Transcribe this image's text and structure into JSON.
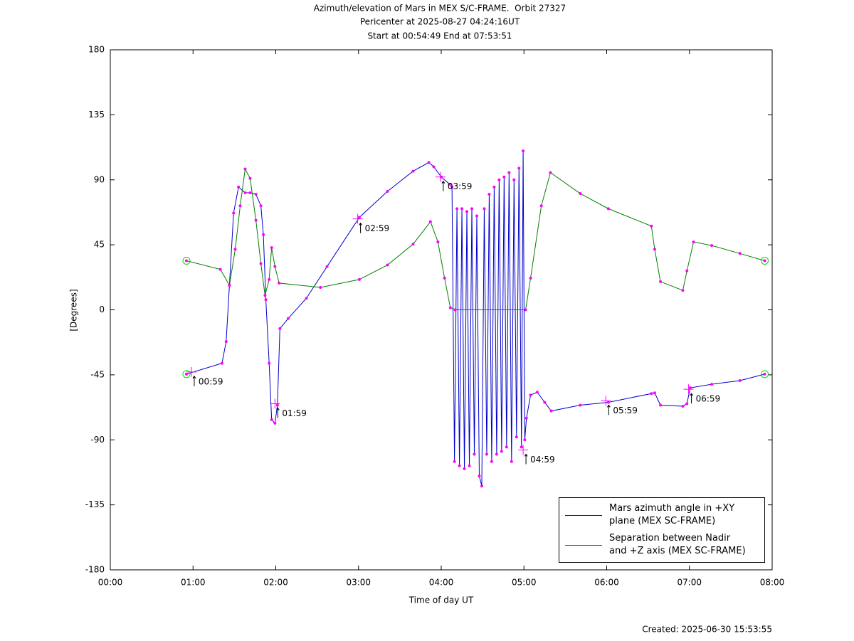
{
  "chart_data": {
    "type": "line",
    "title": "Azimuth/elevation of Mars in MEX S/C-FRAME.  Orbit 27327",
    "subtitle": [
      "Pericenter at 2025-08-27 04:24:16UT",
      "Start at 00:54:49 End at 07:53:51"
    ],
    "xlabel": "Time of day UT",
    "ylabel": "[Degrees]",
    "footer": "Created: 2025-06-30 15:53:55",
    "xlim": [
      0,
      8
    ],
    "ylim": [
      -180,
      180
    ],
    "xticks": [
      {
        "value": 0,
        "label": "00:00"
      },
      {
        "value": 1,
        "label": "01:00"
      },
      {
        "value": 2,
        "label": "02:00"
      },
      {
        "value": 3,
        "label": "03:00"
      },
      {
        "value": 4,
        "label": "04:00"
      },
      {
        "value": 5,
        "label": "05:00"
      },
      {
        "value": 6,
        "label": "06:00"
      },
      {
        "value": 7,
        "label": "07:00"
      },
      {
        "value": 8,
        "label": "08:00"
      }
    ],
    "yticks": [
      -180,
      -135,
      -90,
      -45,
      0,
      45,
      90,
      135,
      180
    ],
    "legend": "lower right",
    "marker_color": "#ff00ff",
    "endpoint_color": "#00dd00",
    "series": [
      {
        "name": "Mars azimuth angle in +XY\nplane (MEX SC-FRAME)",
        "color": "#0000cc",
        "x": [
          0.92,
          1.35,
          1.4,
          1.44,
          1.49,
          1.55,
          1.63,
          1.69,
          1.76,
          1.82,
          1.85,
          1.88,
          1.92,
          1.95,
          1.99,
          2.02,
          2.05,
          2.15,
          2.37,
          2.62,
          3.01,
          3.35,
          3.66,
          3.85,
          3.91,
          4.0,
          4.1,
          4.13,
          4.16,
          4.19,
          4.22,
          4.25,
          4.28,
          4.31,
          4.34,
          4.37,
          4.4,
          4.43,
          4.46,
          4.49,
          4.52,
          4.55,
          4.58,
          4.61,
          4.64,
          4.67,
          4.7,
          4.73,
          4.76,
          4.79,
          4.82,
          4.85,
          4.88,
          4.91,
          4.94,
          4.97,
          4.99,
          5.01,
          5.03,
          5.08,
          5.16,
          5.25,
          5.33,
          5.68,
          6.02,
          6.54,
          6.58,
          6.65,
          6.92,
          6.97,
          7.01,
          7.27,
          7.61,
          7.91
        ],
        "values": [
          -44.5,
          -37,
          -22,
          17,
          67,
          85,
          81,
          81,
          80,
          72,
          52,
          7,
          -37,
          -76,
          -78.5,
          -66,
          -13,
          -6,
          8,
          30,
          64,
          82,
          96,
          102,
          99,
          92,
          87,
          85,
          -105,
          70,
          -108,
          70,
          -110,
          68,
          -108,
          70,
          -100,
          65,
          -115,
          -122,
          70,
          -100,
          80,
          -105,
          85,
          -100,
          90,
          -98,
          92,
          -95,
          95,
          -105,
          90,
          -88,
          98,
          -95,
          110,
          -90,
          -75,
          -59,
          -57,
          -64,
          -70,
          -66,
          -64,
          -58,
          -57.5,
          -66,
          -66.7,
          -65,
          -54,
          -51.5,
          -49,
          -44.5
        ]
      },
      {
        "name": "Separation between Nadir\nand +Z axis (MEX SC-FRAME)",
        "color": "#008000",
        "x": [
          0.92,
          1.33,
          1.44,
          1.51,
          1.57,
          1.63,
          1.69,
          1.76,
          1.82,
          1.87,
          1.92,
          1.95,
          1.99,
          2.04,
          2.54,
          3.01,
          3.35,
          3.66,
          3.87,
          3.96,
          4.04,
          4.11,
          4.17,
          5.02,
          5.08,
          5.21,
          5.32,
          5.68,
          6.02,
          6.54,
          6.58,
          6.65,
          6.92,
          6.97,
          7.05,
          7.27,
          7.61,
          7.91
        ],
        "values": [
          34,
          28,
          17,
          42,
          72,
          97.5,
          91,
          62,
          32,
          10,
          21,
          43,
          30,
          18.5,
          15.5,
          21,
          31,
          45.5,
          61,
          47,
          22,
          1.5,
          0,
          0,
          22,
          72,
          95,
          80.5,
          70,
          58,
          42,
          19.5,
          13.5,
          27,
          47,
          44.5,
          39,
          34
        ]
      }
    ],
    "annotations": [
      {
        "text": "00:59",
        "x": 0.98,
        "y": -43
      },
      {
        "text": "01:59",
        "x": 1.99,
        "y": -65
      },
      {
        "text": "02:59",
        "x": 2.99,
        "y": 63
      },
      {
        "text": "03:59",
        "x": 3.99,
        "y": 92
      },
      {
        "text": "04:59",
        "x": 4.99,
        "y": -97
      },
      {
        "text": "05:59",
        "x": 5.99,
        "y": -63
      },
      {
        "text": "06:59",
        "x": 6.99,
        "y": -55
      }
    ]
  }
}
